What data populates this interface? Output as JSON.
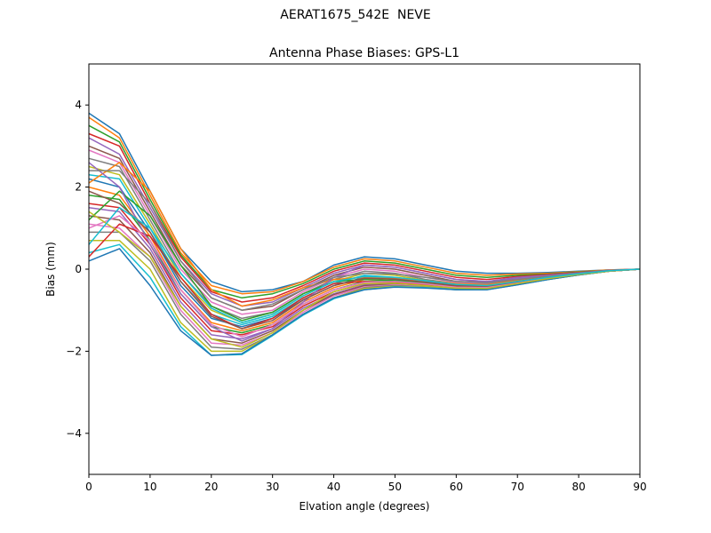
{
  "figure": {
    "suptitle": "AERAT1675_542E  NEVE"
  },
  "chart_data": {
    "type": "line",
    "title": "Antenna Phase Biases: GPS-L1",
    "xlabel": "Elvation angle (degrees)",
    "ylabel": "Bias (mm)",
    "xlim": [
      0,
      90
    ],
    "ylim": [
      -5,
      5
    ],
    "xticks": [
      0,
      10,
      20,
      30,
      40,
      50,
      60,
      70,
      80,
      90
    ],
    "xtick_labels": [
      "0",
      "10",
      "20",
      "30",
      "40",
      "50",
      "60",
      "70",
      "80",
      "90"
    ],
    "yticks": [
      -4,
      -2,
      0,
      2,
      4
    ],
    "ytick_labels": [
      "−4",
      "−2",
      "0",
      "2",
      "4"
    ],
    "grid": false,
    "legend": "none",
    "x": [
      0,
      5,
      10,
      15,
      20,
      25,
      30,
      35,
      40,
      45,
      50,
      55,
      60,
      65,
      70,
      75,
      80,
      85,
      90
    ],
    "palette": [
      "#1f77b4",
      "#ff7f0e",
      "#2ca02c",
      "#d62728",
      "#9467bd",
      "#8c564b",
      "#e377c2",
      "#7f7f7f",
      "#bcbd22",
      "#17becf"
    ],
    "series": [
      {
        "values": [
          3.8,
          3.3,
          1.9,
          0.5,
          -0.3,
          -0.55,
          -0.5,
          -0.3,
          0.1,
          0.3,
          0.25,
          0.1,
          -0.05,
          -0.1,
          -0.1,
          -0.08,
          -0.05,
          -0.02,
          0.0
        ]
      },
      {
        "values": [
          3.7,
          3.2,
          1.8,
          0.4,
          -0.4,
          -0.6,
          -0.55,
          -0.3,
          0.05,
          0.25,
          0.2,
          0.05,
          -0.1,
          -0.15,
          -0.12,
          -0.1,
          -0.06,
          -0.02,
          0.0
        ]
      },
      {
        "values": [
          3.5,
          3.1,
          1.7,
          0.35,
          -0.5,
          -0.7,
          -0.6,
          -0.35,
          0.0,
          0.2,
          0.15,
          0.0,
          -0.15,
          -0.2,
          -0.15,
          -0.12,
          -0.07,
          -0.03,
          0.0
        ]
      },
      {
        "values": [
          3.3,
          3.0,
          1.6,
          0.3,
          -0.55,
          -0.8,
          -0.7,
          -0.4,
          -0.05,
          0.15,
          0.1,
          -0.05,
          -0.2,
          -0.25,
          -0.18,
          -0.13,
          -0.08,
          -0.03,
          0.0
        ]
      },
      {
        "values": [
          3.2,
          2.8,
          1.5,
          0.2,
          -0.6,
          -0.9,
          -0.8,
          -0.45,
          -0.1,
          0.1,
          0.05,
          -0.1,
          -0.25,
          -0.3,
          -0.2,
          -0.15,
          -0.09,
          -0.03,
          0.0
        ]
      },
      {
        "values": [
          3.0,
          2.7,
          1.4,
          0.1,
          -0.7,
          -1.0,
          -0.9,
          -0.5,
          -0.15,
          0.05,
          0.0,
          -0.15,
          -0.3,
          -0.32,
          -0.22,
          -0.16,
          -0.09,
          -0.03,
          0.0
        ]
      },
      {
        "values": [
          2.9,
          2.6,
          1.3,
          0.0,
          -0.8,
          -1.1,
          -1.0,
          -0.55,
          -0.2,
          0.0,
          -0.05,
          -0.2,
          -0.32,
          -0.35,
          -0.25,
          -0.17,
          -0.1,
          -0.04,
          0.0
        ]
      },
      {
        "values": [
          2.7,
          2.5,
          1.2,
          -0.1,
          -0.9,
          -1.2,
          -1.05,
          -0.6,
          -0.25,
          -0.05,
          -0.1,
          -0.25,
          -0.35,
          -0.37,
          -0.27,
          -0.18,
          -0.1,
          -0.04,
          0.0
        ]
      },
      {
        "values": [
          2.5,
          2.3,
          1.1,
          -0.2,
          -1.0,
          -1.3,
          -1.1,
          -0.65,
          -0.3,
          -0.1,
          -0.15,
          -0.28,
          -0.38,
          -0.4,
          -0.28,
          -0.19,
          -0.11,
          -0.04,
          0.0
        ]
      },
      {
        "values": [
          2.3,
          2.2,
          1.0,
          -0.3,
          -1.1,
          -1.35,
          -1.15,
          -0.7,
          -0.35,
          -0.15,
          -0.2,
          -0.3,
          -0.4,
          -0.42,
          -0.3,
          -0.2,
          -0.11,
          -0.04,
          0.0
        ]
      },
      {
        "values": [
          2.2,
          2.0,
          0.9,
          -0.4,
          -1.2,
          -1.4,
          -1.2,
          -0.75,
          -0.4,
          -0.2,
          -0.25,
          -0.33,
          -0.42,
          -0.44,
          -0.32,
          -0.21,
          -0.12,
          -0.05,
          0.0
        ]
      },
      {
        "values": [
          2.0,
          1.8,
          0.8,
          -0.5,
          -1.3,
          -1.5,
          -1.3,
          -0.8,
          -0.45,
          -0.25,
          -0.28,
          -0.35,
          -0.44,
          -0.45,
          -0.33,
          -0.22,
          -0.12,
          -0.05,
          0.0
        ]
      },
      {
        "values": [
          1.8,
          1.7,
          0.7,
          -0.6,
          -1.4,
          -1.55,
          -1.35,
          -0.85,
          -0.5,
          -0.3,
          -0.3,
          -0.37,
          -0.45,
          -0.46,
          -0.34,
          -0.22,
          -0.12,
          -0.05,
          0.0
        ]
      },
      {
        "values": [
          1.6,
          1.5,
          0.6,
          -0.7,
          -1.5,
          -1.6,
          -1.4,
          -0.9,
          -0.55,
          -0.35,
          -0.33,
          -0.38,
          -0.46,
          -0.47,
          -0.35,
          -0.23,
          -0.13,
          -0.05,
          0.0
        ]
      },
      {
        "values": [
          1.5,
          1.4,
          0.5,
          -0.8,
          -1.6,
          -1.7,
          -1.45,
          -0.95,
          -0.6,
          -0.38,
          -0.35,
          -0.4,
          -0.47,
          -0.47,
          -0.35,
          -0.23,
          -0.13,
          -0.05,
          0.0
        ]
      },
      {
        "values": [
          1.3,
          1.2,
          0.4,
          -0.9,
          -1.7,
          -1.8,
          -1.5,
          -1.0,
          -0.62,
          -0.4,
          -0.37,
          -0.41,
          -0.48,
          -0.48,
          -0.36,
          -0.24,
          -0.13,
          -0.05,
          0.0
        ]
      },
      {
        "values": [
          1.1,
          1.0,
          0.3,
          -1.0,
          -1.8,
          -1.85,
          -1.55,
          -1.05,
          -0.65,
          -0.43,
          -0.38,
          -0.42,
          -0.48,
          -0.48,
          -0.36,
          -0.24,
          -0.13,
          -0.05,
          0.0
        ]
      },
      {
        "values": [
          0.9,
          0.9,
          0.2,
          -1.1,
          -1.9,
          -1.95,
          -1.6,
          -1.1,
          -0.7,
          -0.45,
          -0.4,
          -0.43,
          -0.49,
          -0.49,
          -0.37,
          -0.24,
          -0.14,
          -0.05,
          0.0
        ]
      },
      {
        "values": [
          0.7,
          0.7,
          0.0,
          -1.3,
          -2.0,
          -2.0,
          -1.6,
          -1.1,
          -0.7,
          -0.47,
          -0.42,
          -0.44,
          -0.5,
          -0.49,
          -0.37,
          -0.25,
          -0.14,
          -0.05,
          0.0
        ]
      },
      {
        "values": [
          0.4,
          0.6,
          -0.2,
          -1.4,
          -2.1,
          -2.08,
          -1.62,
          -1.12,
          -0.72,
          -0.5,
          -0.43,
          -0.45,
          -0.5,
          -0.5,
          -0.38,
          -0.25,
          -0.14,
          -0.05,
          0.0
        ]
      },
      {
        "values": [
          0.2,
          0.5,
          -0.4,
          -1.5,
          -2.1,
          -2.06,
          -1.6,
          -1.1,
          -0.7,
          -0.5,
          -0.44,
          -0.46,
          -0.5,
          -0.5,
          -0.38,
          -0.25,
          -0.14,
          -0.05,
          0.0
        ]
      },
      {
        "values": [
          2.1,
          2.6,
          1.9,
          0.5,
          -0.5,
          -0.9,
          -0.75,
          -0.45,
          -0.25,
          -0.2,
          -0.22,
          -0.28,
          -0.35,
          -0.38,
          -0.28,
          -0.18,
          -0.1,
          -0.04,
          0.0
        ]
      },
      {
        "values": [
          1.2,
          1.9,
          1.3,
          0.1,
          -0.9,
          -1.25,
          -1.05,
          -0.6,
          -0.3,
          -0.25,
          -0.28,
          -0.33,
          -0.4,
          -0.42,
          -0.3,
          -0.2,
          -0.11,
          -0.04,
          0.0
        ]
      },
      {
        "values": [
          0.3,
          1.1,
          0.8,
          -0.2,
          -1.1,
          -1.45,
          -1.2,
          -0.7,
          -0.35,
          -0.3,
          -0.32,
          -0.37,
          -0.43,
          -0.45,
          -0.33,
          -0.22,
          -0.12,
          -0.05,
          0.0
        ]
      },
      {
        "values": [
          2.6,
          2.0,
          0.6,
          -0.6,
          -1.4,
          -1.75,
          -1.45,
          -0.8,
          -0.2,
          0.1,
          0.05,
          -0.1,
          -0.25,
          -0.3,
          -0.22,
          -0.15,
          -0.09,
          -0.03,
          0.0
        ]
      },
      {
        "values": [
          1.9,
          1.6,
          0.9,
          -0.3,
          -1.15,
          -1.45,
          -1.25,
          -0.75,
          -0.4,
          -0.22,
          -0.24,
          -0.32,
          -0.4,
          -0.42,
          -0.31,
          -0.2,
          -0.11,
          -0.04,
          0.0
        ]
      },
      {
        "values": [
          1.0,
          1.3,
          0.7,
          -0.5,
          -1.35,
          -1.65,
          -1.35,
          -0.85,
          -0.5,
          -0.32,
          -0.3,
          -0.36,
          -0.44,
          -0.45,
          -0.34,
          -0.22,
          -0.12,
          -0.05,
          0.0
        ]
      },
      {
        "values": [
          2.4,
          2.4,
          1.6,
          0.2,
          -0.7,
          -1.0,
          -0.85,
          -0.5,
          -0.2,
          -0.1,
          -0.12,
          -0.2,
          -0.3,
          -0.33,
          -0.25,
          -0.17,
          -0.1,
          -0.04,
          0.0
        ]
      },
      {
        "values": [
          1.4,
          0.9,
          0.3,
          -0.9,
          -1.7,
          -1.9,
          -1.55,
          -1.0,
          -0.55,
          -0.35,
          -0.34,
          -0.4,
          -0.46,
          -0.47,
          -0.35,
          -0.23,
          -0.13,
          -0.05,
          0.0
        ]
      },
      {
        "values": [
          0.6,
          1.5,
          1.0,
          -0.1,
          -0.95,
          -1.3,
          -1.1,
          -0.65,
          -0.3,
          -0.18,
          -0.2,
          -0.28,
          -0.37,
          -0.4,
          -0.3,
          -0.2,
          -0.11,
          -0.04,
          0.0
        ]
      }
    ]
  }
}
